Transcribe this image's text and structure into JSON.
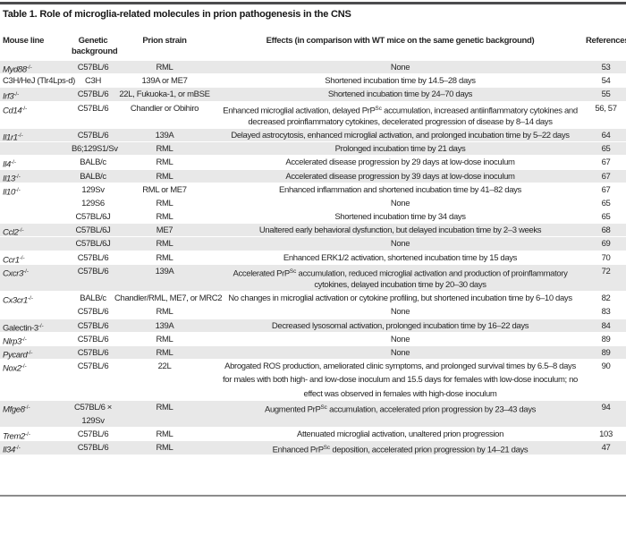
{
  "title": "Table 1. Role of microglia-related molecules in prion pathogenesis in the CNS",
  "columns": [
    "Mouse line",
    "Genetic background",
    "Prion strain",
    "Effects (in comparison with WT mice on the same genetic background)",
    "References"
  ],
  "colors": {
    "stripe": "#e8e8e8",
    "top_rule": "#4c4c4e",
    "bottom_rule": "#8c8c8c",
    "text": "#262626"
  },
  "rows": [
    {
      "mouse_line": "Myd88",
      "sup": "-/-",
      "italic": true,
      "background_lines": [
        "C57BL/6"
      ],
      "strain": "RML",
      "effect_lines": [
        "None"
      ],
      "reference": "53",
      "shade": true
    },
    {
      "mouse_line": "C3H/HeJ (Tlr4Lps-d)",
      "sup": "",
      "italic": false,
      "background_lines": [
        "C3H"
      ],
      "strain": "139A or ME7",
      "effect_lines": [
        "Shortened incubation time by 14.5–28 days"
      ],
      "reference": "54",
      "shade": false
    },
    {
      "mouse_line": "Irf3",
      "sup": "-/-",
      "italic": true,
      "background_lines": [
        "C57BL/6"
      ],
      "strain": "22L, Fukuoka-1, or mBSE",
      "effect_lines": [
        "Shortened incubation time by 24–70 days"
      ],
      "reference": "55",
      "shade": true
    },
    {
      "mouse_line": "Cd14",
      "sup": "-/-",
      "italic": true,
      "background_lines": [
        "C57BL/6"
      ],
      "strain": "Chandler or Obihiro",
      "effect_lines": [
        "Enhanced microglial activation, delayed PrP^{Sc} accumulation, increased antiinflammatory cytokines and",
        "decreased proinflammatory cytokines, decelerated progression of disease by 8–14 days"
      ],
      "reference": "56, 57",
      "shade": false
    },
    {
      "mouse_line": "Il1r1",
      "sup": "-/-",
      "italic": true,
      "background_lines": [
        "C57BL/6"
      ],
      "strain": "139A",
      "effect_lines": [
        "Delayed astrocytosis, enhanced microglial activation, and prolonged incubation time by 5–22 days"
      ],
      "reference": "64",
      "shade": true
    },
    {
      "mouse_line": "",
      "sup": "",
      "italic": false,
      "background_lines": [
        "B6;129S1/Sv"
      ],
      "strain": "RML",
      "effect_lines": [
        "Prolonged incubation time by 21 days"
      ],
      "reference": "65",
      "shade": true
    },
    {
      "mouse_line": "Il4",
      "sup": "-/-",
      "italic": true,
      "background_lines": [
        "BALB/c"
      ],
      "strain": "RML",
      "effect_lines": [
        "Accelerated disease progression by 29 days at low-dose inoculum"
      ],
      "reference": "67",
      "shade": false
    },
    {
      "mouse_line": "Il13",
      "sup": "-/-",
      "italic": true,
      "background_lines": [
        "BALB/c"
      ],
      "strain": "RML",
      "effect_lines": [
        "Accelerated disease progression by 39 days at low-dose inoculum"
      ],
      "reference": "67",
      "shade": true
    },
    {
      "mouse_line": "Il10",
      "sup": "-/-",
      "italic": true,
      "background_lines": [
        "129Sv"
      ],
      "strain": "RML or ME7",
      "effect_lines": [
        "Enhanced inflammation and shortened incubation time by 41–82 days"
      ],
      "reference": "67",
      "shade": false
    },
    {
      "mouse_line": "",
      "sup": "",
      "italic": false,
      "background_lines": [
        "129S6"
      ],
      "strain": "RML",
      "effect_lines": [
        "None"
      ],
      "reference": "65",
      "shade": false
    },
    {
      "mouse_line": "",
      "sup": "",
      "italic": false,
      "background_lines": [
        "C57BL/6J"
      ],
      "strain": "RML",
      "effect_lines": [
        "Shortened incubation time by 34 days"
      ],
      "reference": "65",
      "shade": false
    },
    {
      "mouse_line": "Ccl2",
      "sup": "-/-",
      "italic": true,
      "background_lines": [
        "C57BL/6J"
      ],
      "strain": "ME7",
      "effect_lines": [
        "Unaltered early behavioral dysfunction, but delayed incubation time by 2–3 weeks"
      ],
      "reference": "68",
      "shade": true
    },
    {
      "mouse_line": "",
      "sup": "",
      "italic": false,
      "background_lines": [
        "C57BL/6J"
      ],
      "strain": "RML",
      "effect_lines": [
        "None"
      ],
      "reference": "69",
      "shade": true
    },
    {
      "mouse_line": "Ccr1",
      "sup": "-/-",
      "italic": true,
      "background_lines": [
        "C57BL/6"
      ],
      "strain": "RML",
      "effect_lines": [
        "Enhanced ERK1/2 activation, shortened incubation time by 15 days"
      ],
      "reference": "70",
      "shade": false
    },
    {
      "mouse_line": "Cxcr3",
      "sup": "-/-",
      "italic": true,
      "background_lines": [
        "C57BL/6"
      ],
      "strain": "139A",
      "effect_lines": [
        "Accelerated PrP^{Sc} accumulation, reduced microglial activation and production of proinflammatory",
        "cytokines, delayed incubation time by 20–30 days"
      ],
      "reference": "72",
      "shade": true
    },
    {
      "mouse_line": "Cx3cr1",
      "sup": "-/-",
      "italic": true,
      "background_lines": [
        "BALB/c"
      ],
      "strain": "Chandler/RML, ME7, or MRC2",
      "effect_lines": [
        "No changes in microglial activation or cytokine profiling, but shortened incubation time by 6–10 days"
      ],
      "reference": "82",
      "shade": false
    },
    {
      "mouse_line": "",
      "sup": "",
      "italic": false,
      "background_lines": [
        "C57BL/6"
      ],
      "strain": "RML",
      "effect_lines": [
        "None"
      ],
      "reference": "83",
      "shade": false
    },
    {
      "mouse_line": "Galectin-3",
      "sup": "-/-",
      "italic": false,
      "background_lines": [
        "C57BL/6"
      ],
      "strain": "139A",
      "effect_lines": [
        "Decreased lysosomal activation, prolonged incubation time by 16–22 days"
      ],
      "reference": "84",
      "shade": true
    },
    {
      "mouse_line": "Nlrp3",
      "sup": "-/-",
      "italic": true,
      "background_lines": [
        "C57BL/6"
      ],
      "strain": "RML",
      "effect_lines": [
        "None"
      ],
      "reference": "89",
      "shade": false
    },
    {
      "mouse_line": "Pycard",
      "sup": "-/-",
      "italic": true,
      "background_lines": [
        "C57BL/6"
      ],
      "strain": "RML",
      "effect_lines": [
        "None"
      ],
      "reference": "89",
      "shade": true
    },
    {
      "mouse_line": "Nox2",
      "sup": "-/-",
      "italic": true,
      "background_lines": [
        "C57BL/6"
      ],
      "strain": "22L",
      "effect_lines": [
        "Abrogated ROS production, ameliorated clinic symptoms, and prolonged survival times by 6.5–8 days",
        "for males with both high- and low-dose inoculum and 15.5 days for females with low-dose inoculum; no",
        "effect was observed in females with high-dose inoculum"
      ],
      "reference": "90",
      "shade": false
    },
    {
      "mouse_line": "Mfge8",
      "sup": "-/-",
      "italic": true,
      "background_lines": [
        "C57BL/6 ×",
        "129Sv"
      ],
      "strain": "RML",
      "effect_lines": [
        "Augmented PrP^{Sc} accumulation, accelerated prion progression by 23–43 days"
      ],
      "reference": "94",
      "shade": true
    },
    {
      "mouse_line": "Trem2",
      "sup": "-/-",
      "italic": true,
      "background_lines": [
        "C57BL/6"
      ],
      "strain": "RML",
      "effect_lines": [
        "Attenuated microglial activation, unaltered prion progression"
      ],
      "reference": "103",
      "shade": false
    },
    {
      "mouse_line": "Il34",
      "sup": "-/-",
      "italic": true,
      "background_lines": [
        "C57BL/6"
      ],
      "strain": "RML",
      "effect_lines": [
        "Enhanced PrP^{Sc} deposition, accelerated prion progression by 14–21 days"
      ],
      "reference": "47",
      "shade": true
    }
  ]
}
